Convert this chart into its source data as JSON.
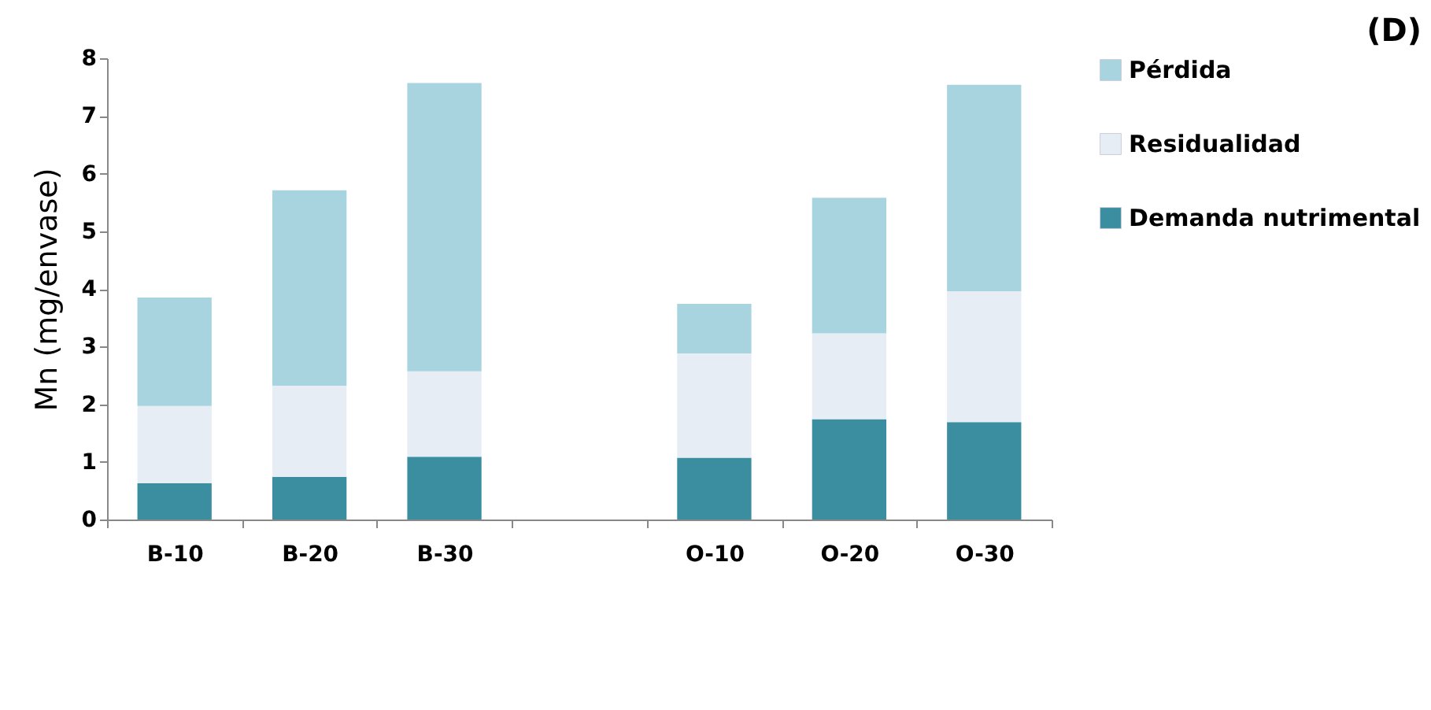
{
  "chart_data": {
    "type": "bar",
    "title": "(D)",
    "ylabel": "Mn  (mg/envase)",
    "categories": [
      "B-10",
      "B-20",
      "B-30",
      null,
      "O-10",
      "O-20",
      "O-30"
    ],
    "stacked": true,
    "series": [
      {
        "name": "Demanda nutrimental",
        "color": "#3a8ea0",
        "values": [
          0.63,
          0.74,
          1.09,
          null,
          1.07,
          1.74,
          1.69
        ]
      },
      {
        "name": "Residualidad",
        "color": "#e6edf5",
        "values": [
          1.34,
          1.58,
          1.48,
          null,
          1.81,
          1.49,
          2.27
        ]
      },
      {
        "name": "Pérdida",
        "color": "#a8d4e0",
        "values": [
          1.88,
          3.39,
          5.0,
          null,
          0.86,
          2.35,
          3.58
        ]
      }
    ],
    "ylim": [
      0,
      8
    ],
    "yticks": [
      0,
      1,
      2,
      3,
      4,
      5,
      6,
      7,
      8
    ],
    "grid": false,
    "legend": "right"
  }
}
